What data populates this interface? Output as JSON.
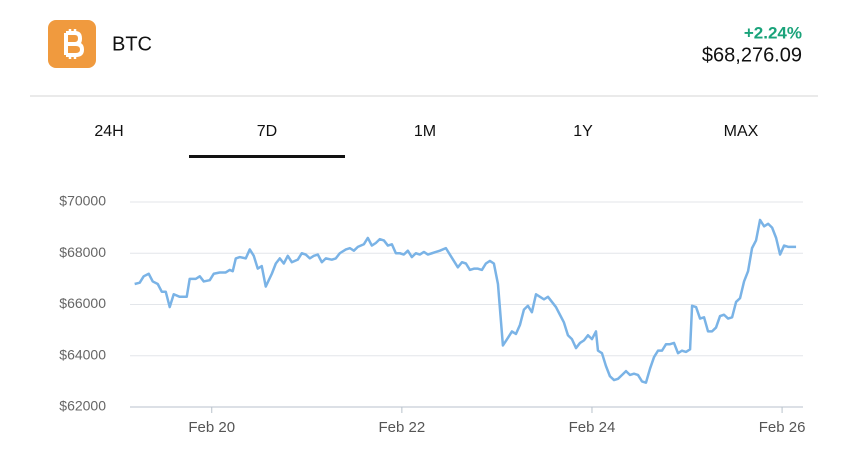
{
  "header": {
    "symbol": "BTC",
    "change": "+2.24%",
    "price": "$68,276.09"
  },
  "tabs": [
    {
      "label": "24H"
    },
    {
      "label": "7D",
      "selected": true
    },
    {
      "label": "1M"
    },
    {
      "label": "1Y"
    },
    {
      "label": "MAX"
    }
  ],
  "chart_data": {
    "type": "line",
    "color": "#7ab3e6",
    "grid": true,
    "xlim": [
      19.14,
      26.22
    ],
    "ylim": [
      62000,
      70000
    ],
    "xticks": [
      {
        "value": 20,
        "label": "Feb 20"
      },
      {
        "value": 22,
        "label": "Feb 22"
      },
      {
        "value": 24,
        "label": "Feb 24"
      },
      {
        "value": 26,
        "label": "Feb 26"
      }
    ],
    "yticks": [
      {
        "value": 62000,
        "label": "$62000"
      },
      {
        "value": 64000,
        "label": "$64000"
      },
      {
        "value": 66000,
        "label": "$66000"
      },
      {
        "value": 68000,
        "label": "$68000"
      },
      {
        "value": 70000,
        "label": "$70000"
      }
    ],
    "x": [
      19.189,
      19.242,
      19.284,
      19.337,
      19.379,
      19.432,
      19.474,
      19.516,
      19.558,
      19.6,
      19.663,
      19.737,
      19.768,
      19.832,
      19.874,
      19.916,
      19.979,
      20.021,
      20.084,
      20.147,
      20.189,
      20.221,
      20.253,
      20.295,
      20.358,
      20.4,
      20.442,
      20.484,
      20.526,
      20.568,
      20.632,
      20.674,
      20.716,
      20.758,
      20.8,
      20.842,
      20.905,
      20.947,
      20.989,
      21.032,
      21.074,
      21.116,
      21.158,
      21.2,
      21.263,
      21.305,
      21.347,
      21.411,
      21.453,
      21.495,
      21.537,
      21.6,
      21.642,
      21.684,
      21.726,
      21.768,
      21.811,
      21.853,
      21.895,
      21.937,
      21.979,
      22.021,
      22.063,
      22.105,
      22.147,
      22.189,
      22.232,
      22.274,
      22.316,
      22.358,
      22.4,
      22.463,
      22.505,
      22.547,
      22.589,
      22.632,
      22.674,
      22.716,
      22.758,
      22.8,
      22.842,
      22.884,
      22.926,
      22.968,
      23.011,
      23.063,
      23.116,
      23.158,
      23.2,
      23.242,
      23.284,
      23.326,
      23.368,
      23.411,
      23.453,
      23.495,
      23.537,
      23.579,
      23.621,
      23.663,
      23.705,
      23.747,
      23.789,
      23.832,
      23.874,
      23.916,
      23.958,
      24.0,
      24.042,
      24.063,
      24.105,
      24.147,
      24.189,
      24.232,
      24.274,
      24.316,
      24.358,
      24.4,
      24.442,
      24.484,
      24.526,
      24.568,
      24.611,
      24.653,
      24.695,
      24.737,
      24.779,
      24.821,
      24.863,
      24.905,
      24.947,
      24.989,
      25.032,
      25.053,
      25.095,
      25.137,
      25.179,
      25.221,
      25.263,
      25.305,
      25.347,
      25.389,
      25.432,
      25.474,
      25.516,
      25.558,
      25.6,
      25.642,
      25.684,
      25.726,
      25.768,
      25.811,
      25.853,
      25.895,
      25.937,
      25.979,
      26.021,
      26.063,
      26.147
    ],
    "values": [
      66800,
      66850,
      67100,
      67200,
      66900,
      66800,
      66500,
      66500,
      65900,
      66400,
      66300,
      66300,
      67000,
      67000,
      67100,
      66900,
      66950,
      67200,
      67250,
      67250,
      67350,
      67300,
      67800,
      67850,
      67800,
      68150,
      67900,
      67400,
      67500,
      66700,
      67200,
      67600,
      67800,
      67600,
      67900,
      67650,
      67750,
      68000,
      67950,
      67800,
      67900,
      67950,
      67650,
      67800,
      67750,
      67800,
      68000,
      68150,
      68200,
      68100,
      68250,
      68350,
      68600,
      68300,
      68400,
      68550,
      68500,
      68300,
      68350,
      68000,
      68000,
      67950,
      68100,
      67850,
      68000,
      67950,
      68050,
      67950,
      68000,
      68050,
      68100,
      68200,
      67950,
      67700,
      67450,
      67650,
      67600,
      67350,
      67400,
      67400,
      67350,
      67600,
      67700,
      67600,
      66800,
      64400,
      64700,
      64950,
      64850,
      65200,
      65800,
      65950,
      65700,
      66400,
      66300,
      66200,
      66300,
      66100,
      65900,
      65600,
      65300,
      64800,
      64650,
      64300,
      64500,
      64600,
      64800,
      64650,
      64950,
      64200,
      64100,
      63600,
      63200,
      63050,
      63100,
      63250,
      63400,
      63250,
      63300,
      63250,
      63000,
      62950,
      63500,
      63950,
      64200,
      64200,
      64450,
      64450,
      64500,
      64100,
      64200,
      64150,
      64250,
      65950,
      65900,
      65450,
      65500,
      64950,
      64950,
      65100,
      65550,
      65600,
      65450,
      65500,
      66100,
      66250,
      66900,
      67300,
      68200,
      68500,
      69300,
      69050,
      69150,
      69000,
      68600,
      67950,
      68300,
      68250,
      68250
    ]
  }
}
